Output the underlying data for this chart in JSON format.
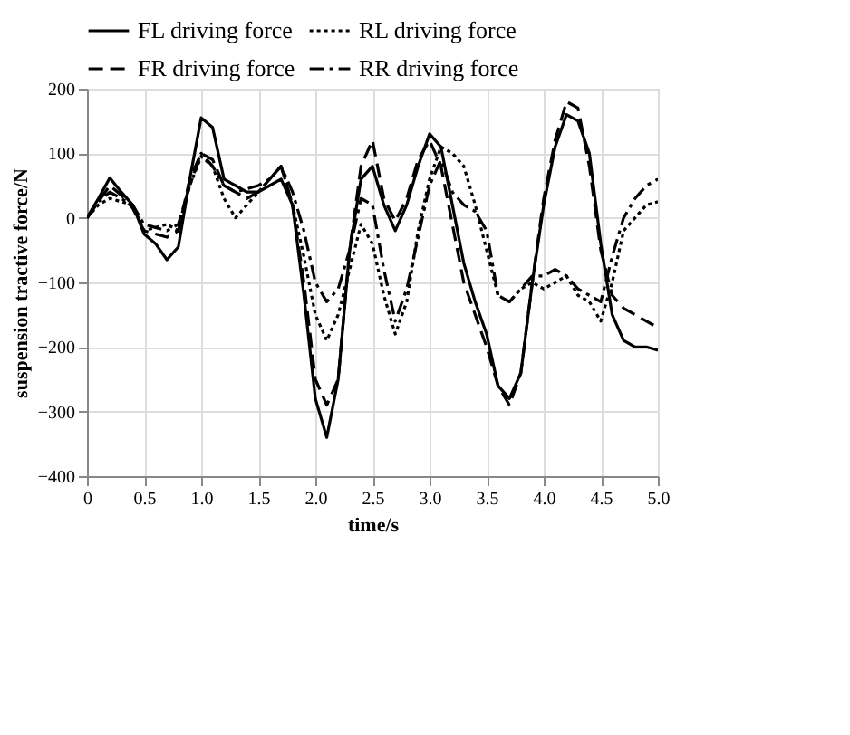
{
  "chart_data": {
    "type": "line",
    "xlabel": "time/s",
    "ylabel": "suspension tractive force/N",
    "x": [
      0,
      0.1,
      0.2,
      0.3,
      0.4,
      0.5,
      0.6,
      0.7,
      0.8,
      0.9,
      1.0,
      1.1,
      1.2,
      1.3,
      1.4,
      1.5,
      1.6,
      1.7,
      1.8,
      1.9,
      2.0,
      2.1,
      2.2,
      2.3,
      2.4,
      2.5,
      2.6,
      2.7,
      2.8,
      2.9,
      3.0,
      3.1,
      3.2,
      3.3,
      3.4,
      3.5,
      3.6,
      3.7,
      3.8,
      3.9,
      4.0,
      4.1,
      4.2,
      4.3,
      4.4,
      4.5,
      4.6,
      4.7,
      4.8,
      4.9,
      5.0
    ],
    "series": [
      {
        "name": "FL driving force",
        "color": "#000000",
        "line_style": "solid",
        "values": [
          0,
          30,
          62,
          40,
          20,
          -25,
          -40,
          -65,
          -45,
          60,
          155,
          140,
          60,
          50,
          40,
          40,
          50,
          60,
          20,
          -120,
          -280,
          -340,
          -250,
          -50,
          60,
          80,
          20,
          -20,
          20,
          80,
          130,
          110,
          20,
          -70,
          -130,
          -180,
          -260,
          -280,
          -240,
          -100,
          20,
          110,
          160,
          150,
          100,
          -40,
          -150,
          -190,
          -200,
          -200,
          -205
        ]
      },
      {
        "name": "RL driving force",
        "color": "#000000",
        "line_style": "dotted",
        "values": [
          0,
          20,
          30,
          25,
          20,
          -20,
          -15,
          -10,
          -20,
          50,
          95,
          80,
          30,
          0,
          20,
          40,
          60,
          80,
          20,
          -60,
          -150,
          -190,
          -150,
          -80,
          -10,
          -40,
          -120,
          -180,
          -130,
          -20,
          60,
          110,
          100,
          80,
          20,
          -50,
          -120,
          -130,
          -110,
          -100,
          -110,
          -100,
          -90,
          -120,
          -130,
          -160,
          -100,
          -20,
          0,
          20,
          25
        ]
      },
      {
        "name": "FR driving force",
        "color": "#000000",
        "line_style": "dashed",
        "values": [
          0,
          25,
          50,
          35,
          15,
          -20,
          -25,
          -30,
          -20,
          60,
          100,
          90,
          50,
          40,
          30,
          40,
          60,
          80,
          20,
          -100,
          -250,
          -290,
          -250,
          -50,
          80,
          120,
          30,
          -5,
          30,
          90,
          120,
          80,
          -10,
          -100,
          -150,
          -200,
          -260,
          -290,
          -240,
          -100,
          30,
          120,
          180,
          170,
          80,
          -50,
          -120,
          -140,
          -150,
          -160,
          -170
        ]
      },
      {
        "name": "RR driving force",
        "color": "#000000",
        "line_style": "dashdot",
        "values": [
          0,
          25,
          40,
          30,
          20,
          -10,
          -15,
          -20,
          -10,
          50,
          100,
          80,
          50,
          40,
          45,
          50,
          60,
          80,
          40,
          -20,
          -100,
          -130,
          -110,
          -50,
          30,
          20,
          -80,
          -160,
          -110,
          -30,
          50,
          90,
          40,
          20,
          10,
          -20,
          -120,
          -130,
          -110,
          -90,
          -90,
          -80,
          -90,
          -110,
          -120,
          -130,
          -60,
          0,
          30,
          50,
          60
        ]
      }
    ],
    "xlim": [
      0,
      5
    ],
    "xticks": [
      {
        "value": 0,
        "label": "0"
      },
      0.5,
      {
        "value": 1,
        "label": "1.0"
      },
      1.5,
      {
        "value": 2,
        "label": "2.0"
      },
      2.5,
      {
        "value": 3,
        "label": "3.0"
      },
      3.5,
      {
        "value": 4,
        "label": "4.0"
      },
      4.5,
      {
        "value": 5,
        "label": "5.0"
      }
    ],
    "ylim": [
      -400,
      200
    ],
    "yticks": [
      -400,
      -300,
      -200,
      -100,
      0,
      100,
      200
    ],
    "grid": true,
    "legend": "top"
  }
}
